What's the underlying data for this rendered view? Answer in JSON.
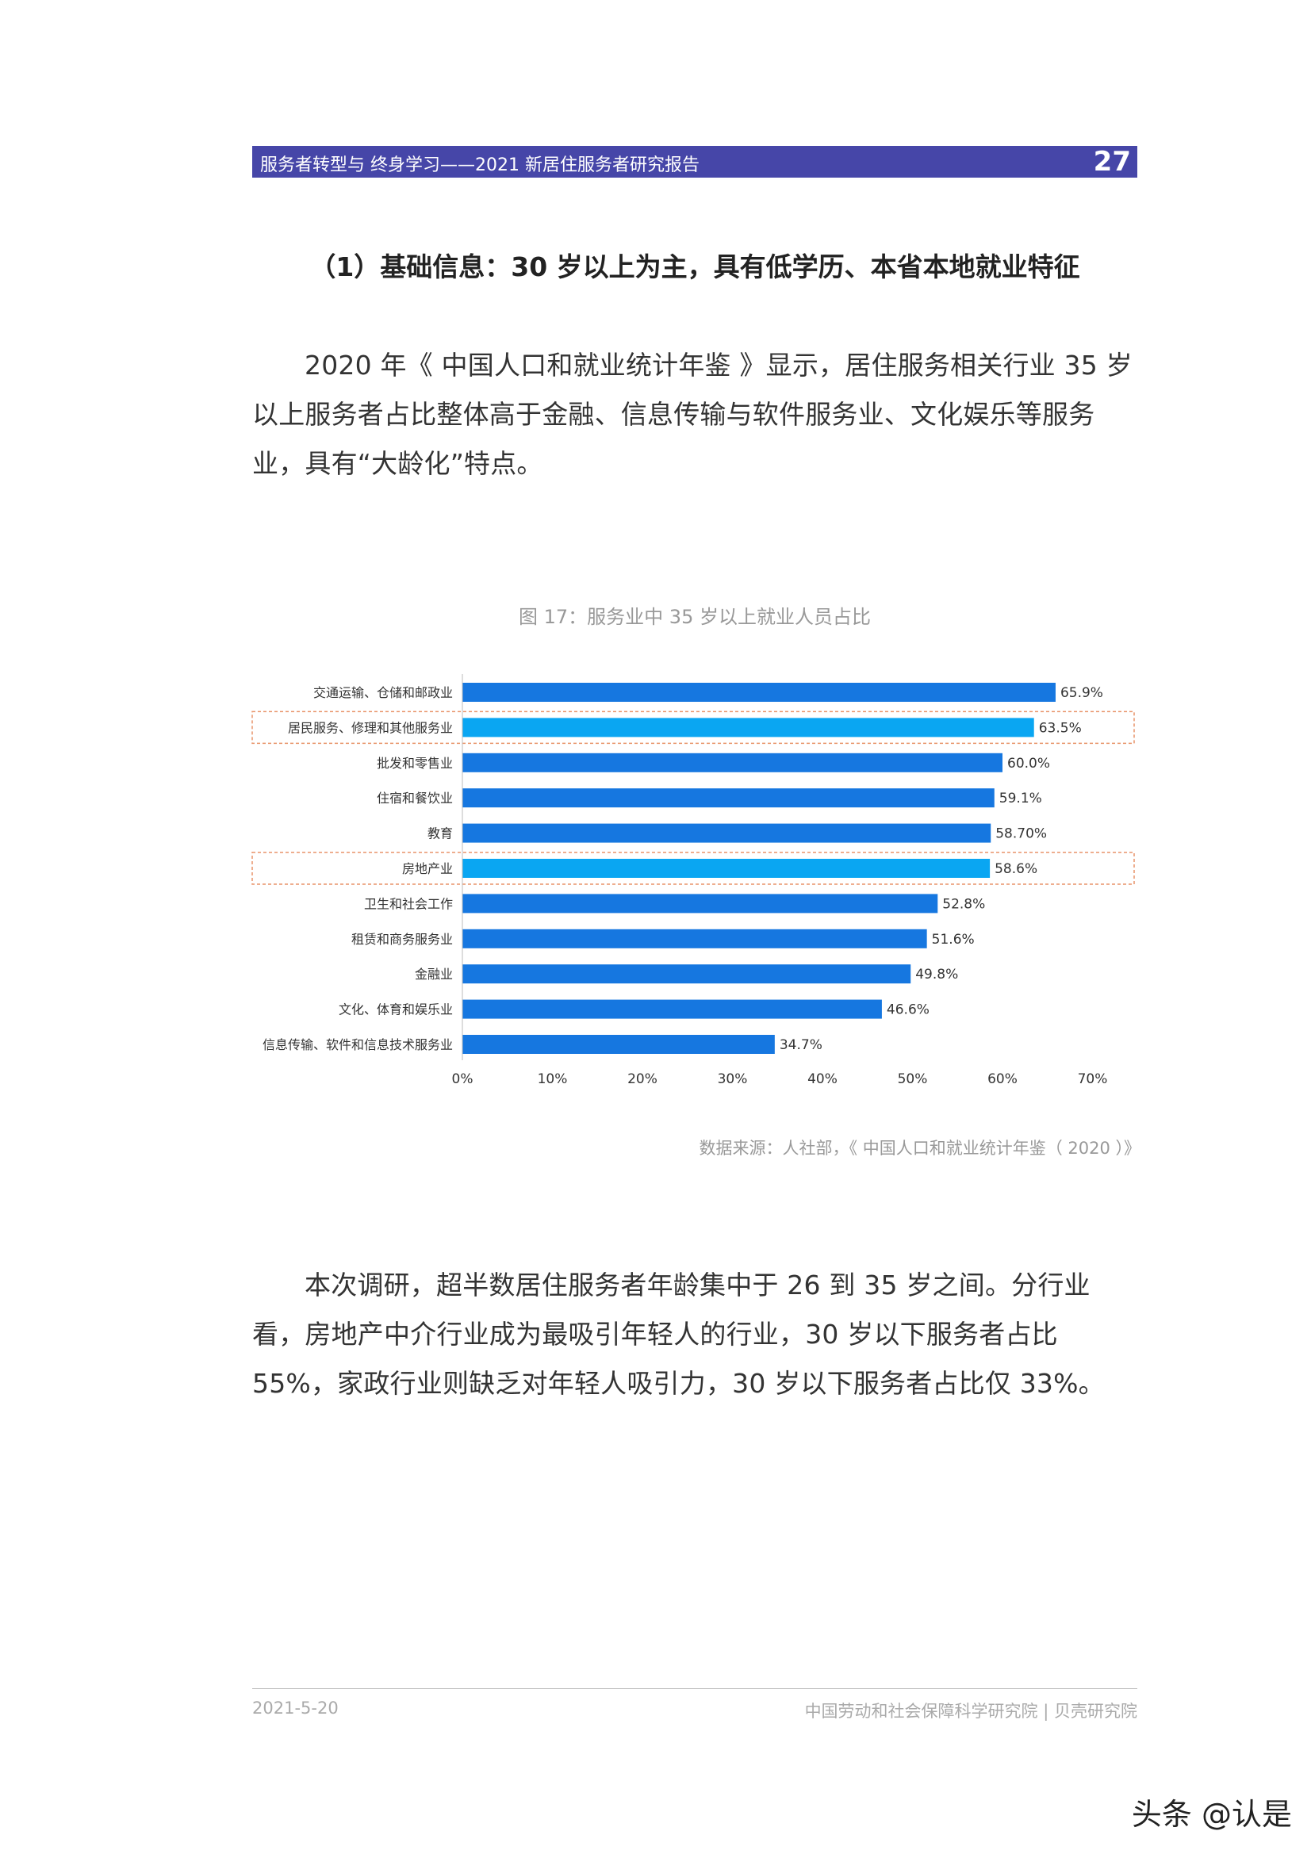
{
  "header": {
    "title": "服务者转型与 终身学习——2021 新居住服务者研究报告",
    "page_number": "27",
    "bar_color": "#4646a8"
  },
  "section_heading": "（1）基础信息：30 岁以上为主，具有低学历、本省本地就业特征",
  "paragraph_1": "2020 年《 中国人口和就业统计年鉴 》显示，居住服务相关行业 35 岁以上服务者占比整体高于金融、信息传输与软件服务业、文化娱乐等服务业，具有“大龄化”特点。",
  "figure_caption": "图 17：服务业中 35 岁以上就业人员占比",
  "chart_data": {
    "type": "bar",
    "orientation": "horizontal",
    "categories": [
      "交通运输、仓储和邮政业",
      "居民服务、修理和其他服务业",
      "批发和零售业",
      "住宿和餐饮业",
      "教育",
      "房地产业",
      "卫生和社会工作",
      "租赁和商务服务业",
      "金融业",
      "文化、体育和娱乐业",
      "信息传输、软件和信息技术服务业"
    ],
    "values": [
      65.9,
      63.5,
      60.0,
      59.1,
      58.7,
      58.6,
      52.8,
      51.6,
      49.8,
      46.6,
      34.7
    ],
    "value_labels": [
      "65.9%",
      "63.5%",
      "60.0%",
      "59.1%",
      "58.70%",
      "58.6%",
      "52.8%",
      "51.6%",
      "49.8%",
      "46.6%",
      "34.7%"
    ],
    "highlighted": [
      "居民服务、修理和其他服务业",
      "房地产业"
    ],
    "xlim": [
      0,
      70
    ],
    "xticks": [
      "0%",
      "10%",
      "20%",
      "30%",
      "40%",
      "50%",
      "60%",
      "70%"
    ],
    "colors": {
      "default": "#1677e0",
      "highlight": "#0aa6f2",
      "highlight_border": "#e8946a"
    },
    "grid": false,
    "legend": "none"
  },
  "source_note": "数据来源：人社部，《 中国人口和就业统计年鉴（ 2020 ）》",
  "paragraph_2": "本次调研，超半数居住服务者年龄集中于 26 到 35 岁之间。分行业看，房地产中介行业成为最吸引年轻人的行业，30 岁以下服务者占比 55%，家政行业则缺乏对年轻人吸引力，30 岁以下服务者占比仅 33%。",
  "footer": {
    "date": "2021-5-20",
    "organizations": "中国劳动和社会保障科学研究院 | 贝壳研究院"
  },
  "watermark": "头条 @认是"
}
